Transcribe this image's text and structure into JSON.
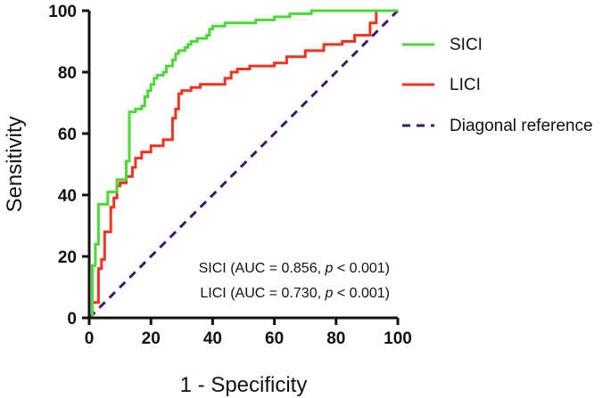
{
  "chart_data": {
    "type": "line",
    "title": "",
    "xlabel": "1 - Specificity",
    "ylabel": "Sensitivity",
    "xlim": [
      0,
      100
    ],
    "ylim": [
      0,
      100
    ],
    "xticks": [
      "0",
      "20",
      "40",
      "60",
      "80",
      "100"
    ],
    "yticks": [
      "0",
      "20",
      "40",
      "60",
      "80",
      "100"
    ],
    "grid": false,
    "legend_position": "right",
    "series": [
      {
        "name": "SICI",
        "color": "#4cd836",
        "style": "step",
        "x": [
          0,
          1,
          1,
          2,
          2,
          3,
          3,
          6,
          6,
          9,
          9,
          12,
          12,
          13,
          13,
          15,
          15,
          17,
          17,
          18,
          18,
          19,
          19,
          20,
          20,
          21,
          21,
          22,
          22,
          24,
          24,
          25,
          25,
          27,
          27,
          28,
          28,
          29,
          29,
          31,
          31,
          32,
          32,
          33,
          33,
          35,
          35,
          38,
          38,
          39,
          39,
          40,
          40,
          44,
          44,
          54,
          54,
          60,
          60,
          65,
          65,
          72,
          72,
          100
        ],
        "y": [
          0,
          0,
          17,
          17,
          24,
          24,
          37,
          37,
          41,
          41,
          45,
          45,
          51,
          51,
          67,
          67,
          68,
          68,
          69,
          69,
          72,
          72,
          74,
          74,
          76,
          76,
          78,
          78,
          79,
          79,
          80,
          80,
          82,
          82,
          84,
          84,
          86,
          86,
          87,
          87,
          88,
          88,
          89,
          89,
          90,
          90,
          91,
          91,
          92,
          92,
          94,
          94,
          95,
          95,
          96,
          96,
          97,
          97,
          98,
          98,
          99,
          99,
          100,
          100
        ]
      },
      {
        "name": "LICI",
        "color": "#f0321e",
        "style": "step",
        "x": [
          0,
          1,
          1,
          3,
          3,
          4,
          4,
          5,
          5,
          7,
          7,
          8,
          8,
          9,
          9,
          10,
          10,
          12,
          12,
          14,
          14,
          15,
          15,
          17,
          17,
          20,
          20,
          24,
          24,
          27,
          27,
          28,
          28,
          29,
          29,
          30,
          30,
          33,
          33,
          36,
          36,
          44,
          44,
          46,
          46,
          48,
          48,
          52,
          52,
          60,
          60,
          64,
          64,
          70,
          70,
          76,
          76,
          82,
          82,
          86,
          86,
          91,
          91,
          93,
          93,
          100
        ],
        "y": [
          0,
          0,
          5,
          5,
          16,
          16,
          19,
          19,
          28,
          28,
          36,
          36,
          39,
          39,
          43,
          43,
          44,
          44,
          46,
          46,
          49,
          49,
          52,
          52,
          54,
          54,
          56,
          56,
          58,
          58,
          65,
          65,
          68,
          68,
          73,
          73,
          74,
          74,
          75,
          75,
          76,
          76,
          78,
          78,
          80,
          80,
          81,
          81,
          82,
          82,
          83,
          83,
          85,
          85,
          87,
          87,
          89,
          89,
          90,
          90,
          92,
          92,
          96,
          96,
          100,
          100
        ]
      },
      {
        "name": "Diagonal reference",
        "color": "#3d1a66",
        "style": "dashed",
        "x": [
          0,
          100
        ],
        "y": [
          0,
          100
        ]
      }
    ],
    "annotations": [
      {
        "name": "SICI",
        "auc": "0.856",
        "p": "0.001"
      },
      {
        "name": "LICI",
        "auc": "0.730",
        "p": "0.001"
      }
    ]
  }
}
